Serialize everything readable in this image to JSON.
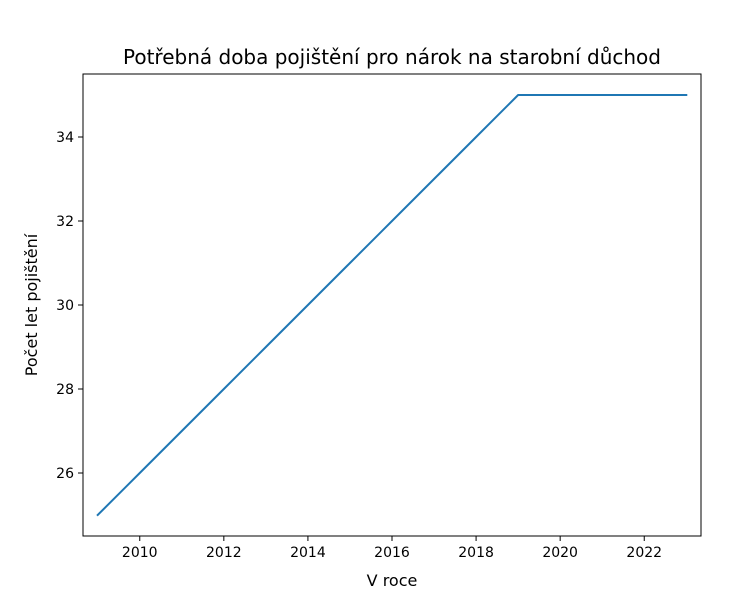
{
  "chart_data": {
    "type": "line",
    "title": "Potřebná doba pojištění pro nárok na starobní důchod",
    "xlabel": "V roce",
    "ylabel": "Počet let pojištění",
    "xlim": [
      2008.65,
      2023.35
    ],
    "ylim": [
      24.5,
      35.5
    ],
    "xticks": [
      2010,
      2012,
      2014,
      2016,
      2018,
      2020,
      2022
    ],
    "yticks": [
      26,
      28,
      30,
      32,
      34
    ],
    "grid": false,
    "series": [
      {
        "color": "#1f77b4",
        "x": [
          2009,
          2010,
          2011,
          2012,
          2013,
          2014,
          2015,
          2016,
          2017,
          2018,
          2019,
          2020,
          2021,
          2022,
          2023
        ],
        "y": [
          25,
          26,
          27,
          28,
          29,
          30,
          31,
          32,
          33,
          34,
          35,
          35,
          35,
          35,
          35
        ]
      }
    ]
  }
}
